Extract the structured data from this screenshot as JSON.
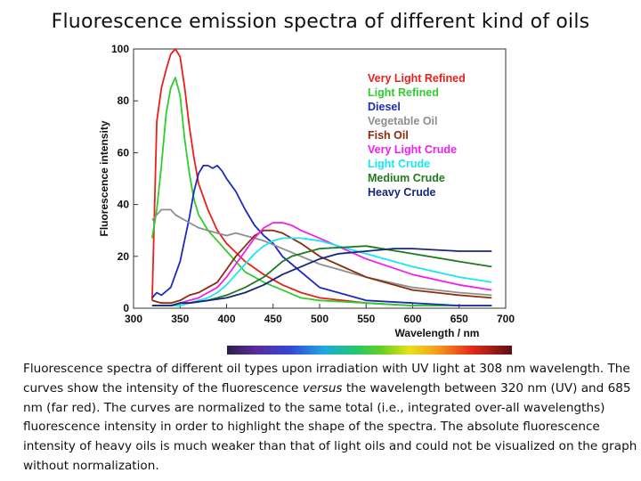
{
  "slide": {
    "title": "Fluorescence emission spectra of different kind of oils",
    "caption_part1": "Fluorescence spectra of different oil types upon irradiation with UV light at 308 nm wavelength. The curves show the intensity of the fluorescence ",
    "caption_italic": "versus",
    "caption_part2": " the wavelength between 320 nm (UV) and 685 nm (far red). The curves are normalized to the same total (i.e., integrated over-all wavelengths) fluorescence intensity in order to highlight the shape of the spectra. The absolute fluorescence intensity of heavy oils is much weaker than that of light oils and could not be visualized on the graph without normalization."
  },
  "chart_data": {
    "type": "line",
    "title": "",
    "xlabel": "Wavelength  / nm",
    "ylabel": "Fluorescence intensity",
    "xlim": [
      300,
      700
    ],
    "ylim": [
      0,
      100
    ],
    "xticks": [
      300,
      350,
      400,
      450,
      500,
      550,
      600,
      650,
      700
    ],
    "yticks": [
      0,
      20,
      40,
      60,
      80,
      100
    ],
    "grid": false,
    "legend_position": "top-right",
    "series": [
      {
        "name": "Very Light Refined",
        "color": "#e8201a",
        "x": [
          320,
          325,
          330,
          335,
          340,
          345,
          350,
          355,
          360,
          365,
          370,
          380,
          390,
          400,
          420,
          440,
          460,
          480,
          500,
          550,
          600,
          650,
          685
        ],
        "y": [
          3,
          72,
          85,
          92,
          98,
          100,
          97,
          85,
          70,
          58,
          48,
          38,
          30,
          25,
          18,
          13,
          9,
          6,
          4,
          2,
          1,
          1,
          1
        ]
      },
      {
        "name": "Light Refined",
        "color": "#2ecc2e",
        "x": [
          320,
          325,
          330,
          335,
          340,
          345,
          350,
          355,
          360,
          365,
          370,
          380,
          390,
          400,
          420,
          440,
          460,
          480,
          500,
          550,
          600,
          650,
          685
        ],
        "y": [
          27,
          38,
          55,
          75,
          85,
          89,
          82,
          65,
          52,
          42,
          36,
          30,
          26,
          22,
          14,
          10,
          7,
          4,
          3,
          2,
          1,
          1,
          1
        ]
      },
      {
        "name": "Diesel",
        "color": "#1a2bbd",
        "x": [
          320,
          325,
          330,
          340,
          350,
          360,
          365,
          370,
          375,
          380,
          385,
          390,
          395,
          400,
          410,
          420,
          430,
          440,
          450,
          460,
          470,
          480,
          500,
          550,
          600,
          650,
          685
        ],
        "y": [
          4,
          6,
          5,
          8,
          18,
          35,
          45,
          52,
          55,
          55,
          54,
          55,
          53,
          50,
          45,
          38,
          32,
          28,
          25,
          20,
          17,
          14,
          8,
          3,
          2,
          1,
          1
        ]
      },
      {
        "name": "Vegetable Oil",
        "color": "#8e8e8e",
        "x": [
          320,
          325,
          330,
          335,
          340,
          345,
          350,
          360,
          370,
          380,
          390,
          400,
          410,
          420,
          430,
          440,
          460,
          480,
          500,
          550,
          600,
          650,
          685
        ],
        "y": [
          34,
          36,
          38,
          38,
          38,
          36,
          35,
          33,
          31,
          30,
          29,
          28,
          29,
          28,
          27,
          26,
          23,
          20,
          17,
          12,
          8,
          6,
          5
        ]
      },
      {
        "name": "Fish Oil",
        "color": "#8b2b0f",
        "x": [
          320,
          330,
          340,
          350,
          360,
          370,
          380,
          390,
          400,
          410,
          420,
          430,
          440,
          450,
          460,
          480,
          500,
          550,
          600,
          650,
          685
        ],
        "y": [
          3,
          2,
          2,
          3,
          5,
          6,
          8,
          10,
          15,
          20,
          24,
          28,
          30,
          30,
          29,
          25,
          20,
          12,
          7,
          5,
          4
        ]
      },
      {
        "name": "Very Light Crude",
        "color": "#f01ef0",
        "x": [
          320,
          330,
          340,
          350,
          360,
          370,
          380,
          390,
          400,
          410,
          420,
          430,
          440,
          450,
          460,
          470,
          480,
          500,
          550,
          600,
          650,
          685
        ],
        "y": [
          1,
          1,
          1,
          2,
          3,
          4,
          6,
          8,
          12,
          17,
          22,
          27,
          31,
          33,
          33,
          32,
          30,
          27,
          19,
          13,
          9,
          7
        ]
      },
      {
        "name": "Light Crude",
        "color": "#18e6f0",
        "x": [
          320,
          330,
          340,
          350,
          360,
          370,
          380,
          390,
          400,
          410,
          420,
          430,
          440,
          450,
          460,
          470,
          480,
          500,
          550,
          600,
          650,
          685
        ],
        "y": [
          1,
          1,
          1,
          1,
          2,
          3,
          4,
          6,
          9,
          13,
          17,
          21,
          24,
          26,
          27,
          27,
          27,
          26,
          21,
          16,
          12,
          10
        ]
      },
      {
        "name": "Medium Crude",
        "color": "#1f7a1f",
        "x": [
          320,
          330,
          340,
          350,
          360,
          380,
          400,
          420,
          440,
          450,
          460,
          470,
          480,
          500,
          550,
          600,
          650,
          685
        ],
        "y": [
          1,
          1,
          1,
          2,
          2,
          3,
          5,
          8,
          12,
          15,
          18,
          20,
          21,
          23,
          24,
          21,
          18,
          16
        ]
      },
      {
        "name": "Heavy Crude",
        "color": "#16277a",
        "x": [
          320,
          330,
          340,
          350,
          360,
          380,
          400,
          420,
          440,
          460,
          480,
          500,
          520,
          550,
          580,
          600,
          650,
          685
        ],
        "y": [
          1,
          1,
          1,
          2,
          2,
          3,
          4,
          6,
          9,
          13,
          16,
          19,
          21,
          22,
          23,
          23,
          22,
          22
        ]
      }
    ]
  }
}
